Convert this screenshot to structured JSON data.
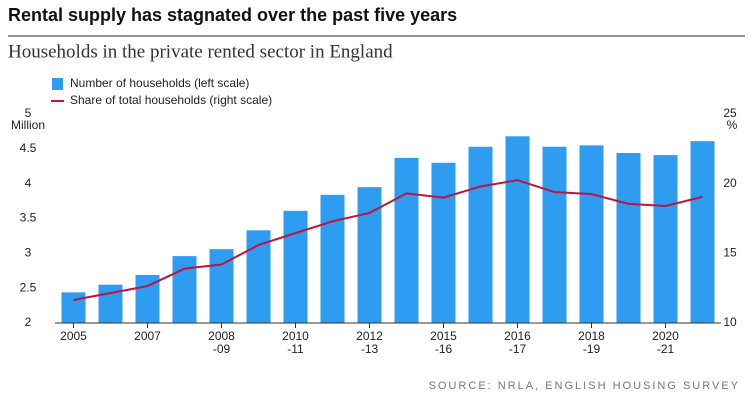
{
  "chart_data": {
    "type": "bar-line",
    "title": "Rental supply has stagnated over the past five years",
    "subtitle": "Households in the private rented sector in England",
    "source": "SOURCE: NRLA, ENGLISH HOUSING SURVEY",
    "y_unit": "Million",
    "y2_unit": "%",
    "categories": [
      "2005",
      null,
      "2007",
      null,
      "2008\n-09",
      null,
      "2010\n-11",
      null,
      "2012\n-13",
      null,
      "2015\n-16",
      null,
      "2016\n-17",
      null,
      "2018\n-19",
      null,
      "2020\n-21",
      null
    ],
    "series": [
      {
        "name": "Number of households (left scale)",
        "color": "#2e9cf0",
        "kind": "bar",
        "values": [
          2.44,
          2.55,
          2.69,
          2.96,
          3.06,
          3.33,
          3.61,
          3.84,
          3.95,
          4.37,
          4.3,
          4.53,
          4.68,
          4.53,
          4.55,
          4.44,
          4.41,
          4.61
        ]
      },
      {
        "name": "Share of total households (right scale)",
        "color": "#c0143c",
        "kind": "line",
        "axis": "y2",
        "values": [
          11.65,
          12.15,
          12.65,
          13.9,
          14.2,
          15.6,
          16.45,
          17.3,
          17.9,
          19.3,
          19.0,
          19.8,
          20.25,
          19.4,
          19.25,
          18.55,
          18.4,
          19.05
        ]
      }
    ],
    "ylim": [
      2,
      5
    ],
    "yticks": [
      2,
      2.5,
      3,
      3.5,
      4,
      4.5,
      5
    ],
    "y2lim": [
      10,
      25
    ],
    "y2ticks": [
      10,
      15,
      20,
      25
    ],
    "grid": false
  }
}
